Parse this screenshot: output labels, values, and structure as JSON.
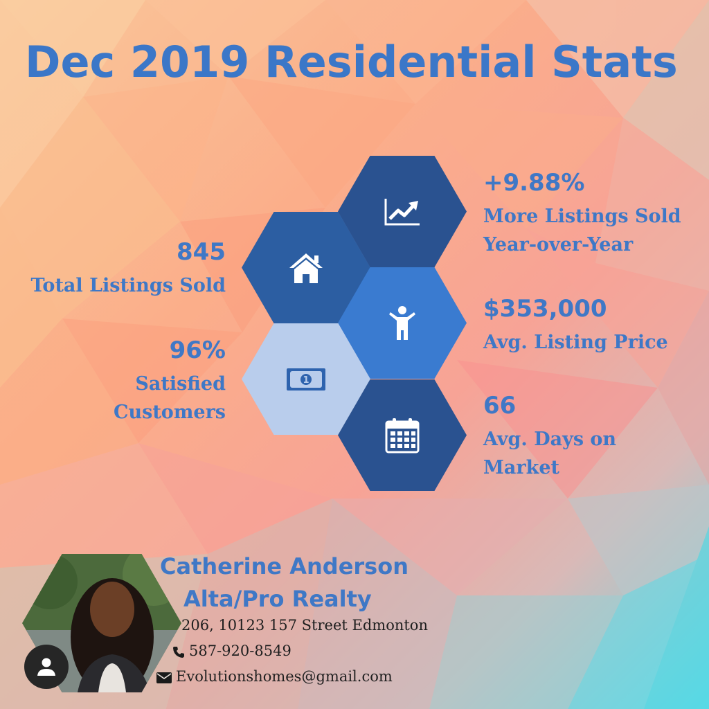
{
  "header": {
    "title": "Dec 2019 Residential Stats"
  },
  "stats": {
    "listings_growth": {
      "value": "+9.88%",
      "label_line1": "More Listings Sold",
      "label_line2": "Year-over-Year"
    },
    "total_sold": {
      "value": "845",
      "label": "Total Listings Sold"
    },
    "avg_price": {
      "value": "$353,000",
      "label": "Avg. Listing Price"
    },
    "satisfied": {
      "value": "96%",
      "label_line1": "Satisfied",
      "label_line2": "Customers"
    },
    "days_on_market": {
      "value": "66",
      "label_line1": "Avg. Days on",
      "label_line2": "Market"
    }
  },
  "agent": {
    "name": "Catherine Anderson",
    "company": "Alta/Pro Realty",
    "address": "206, 10123 157 Street Edmonton",
    "phone": "587-920-8549",
    "email": "Evolutionshomes@gmail.com"
  },
  "icons": {
    "growth": "chart-up-icon",
    "listings": "house-icon",
    "price": "person-icon",
    "satisfied": "money-bill-icon",
    "days": "calendar-icon",
    "phone": "phone-icon",
    "email": "envelope-icon",
    "avatar": "user-icon"
  },
  "colors": {
    "title": "#3b77c8",
    "hex_dark": "#2a5290",
    "hex_mid": "#2c5ea2",
    "hex_bright": "#3a7bd0",
    "hex_light": "#b9cdec"
  }
}
